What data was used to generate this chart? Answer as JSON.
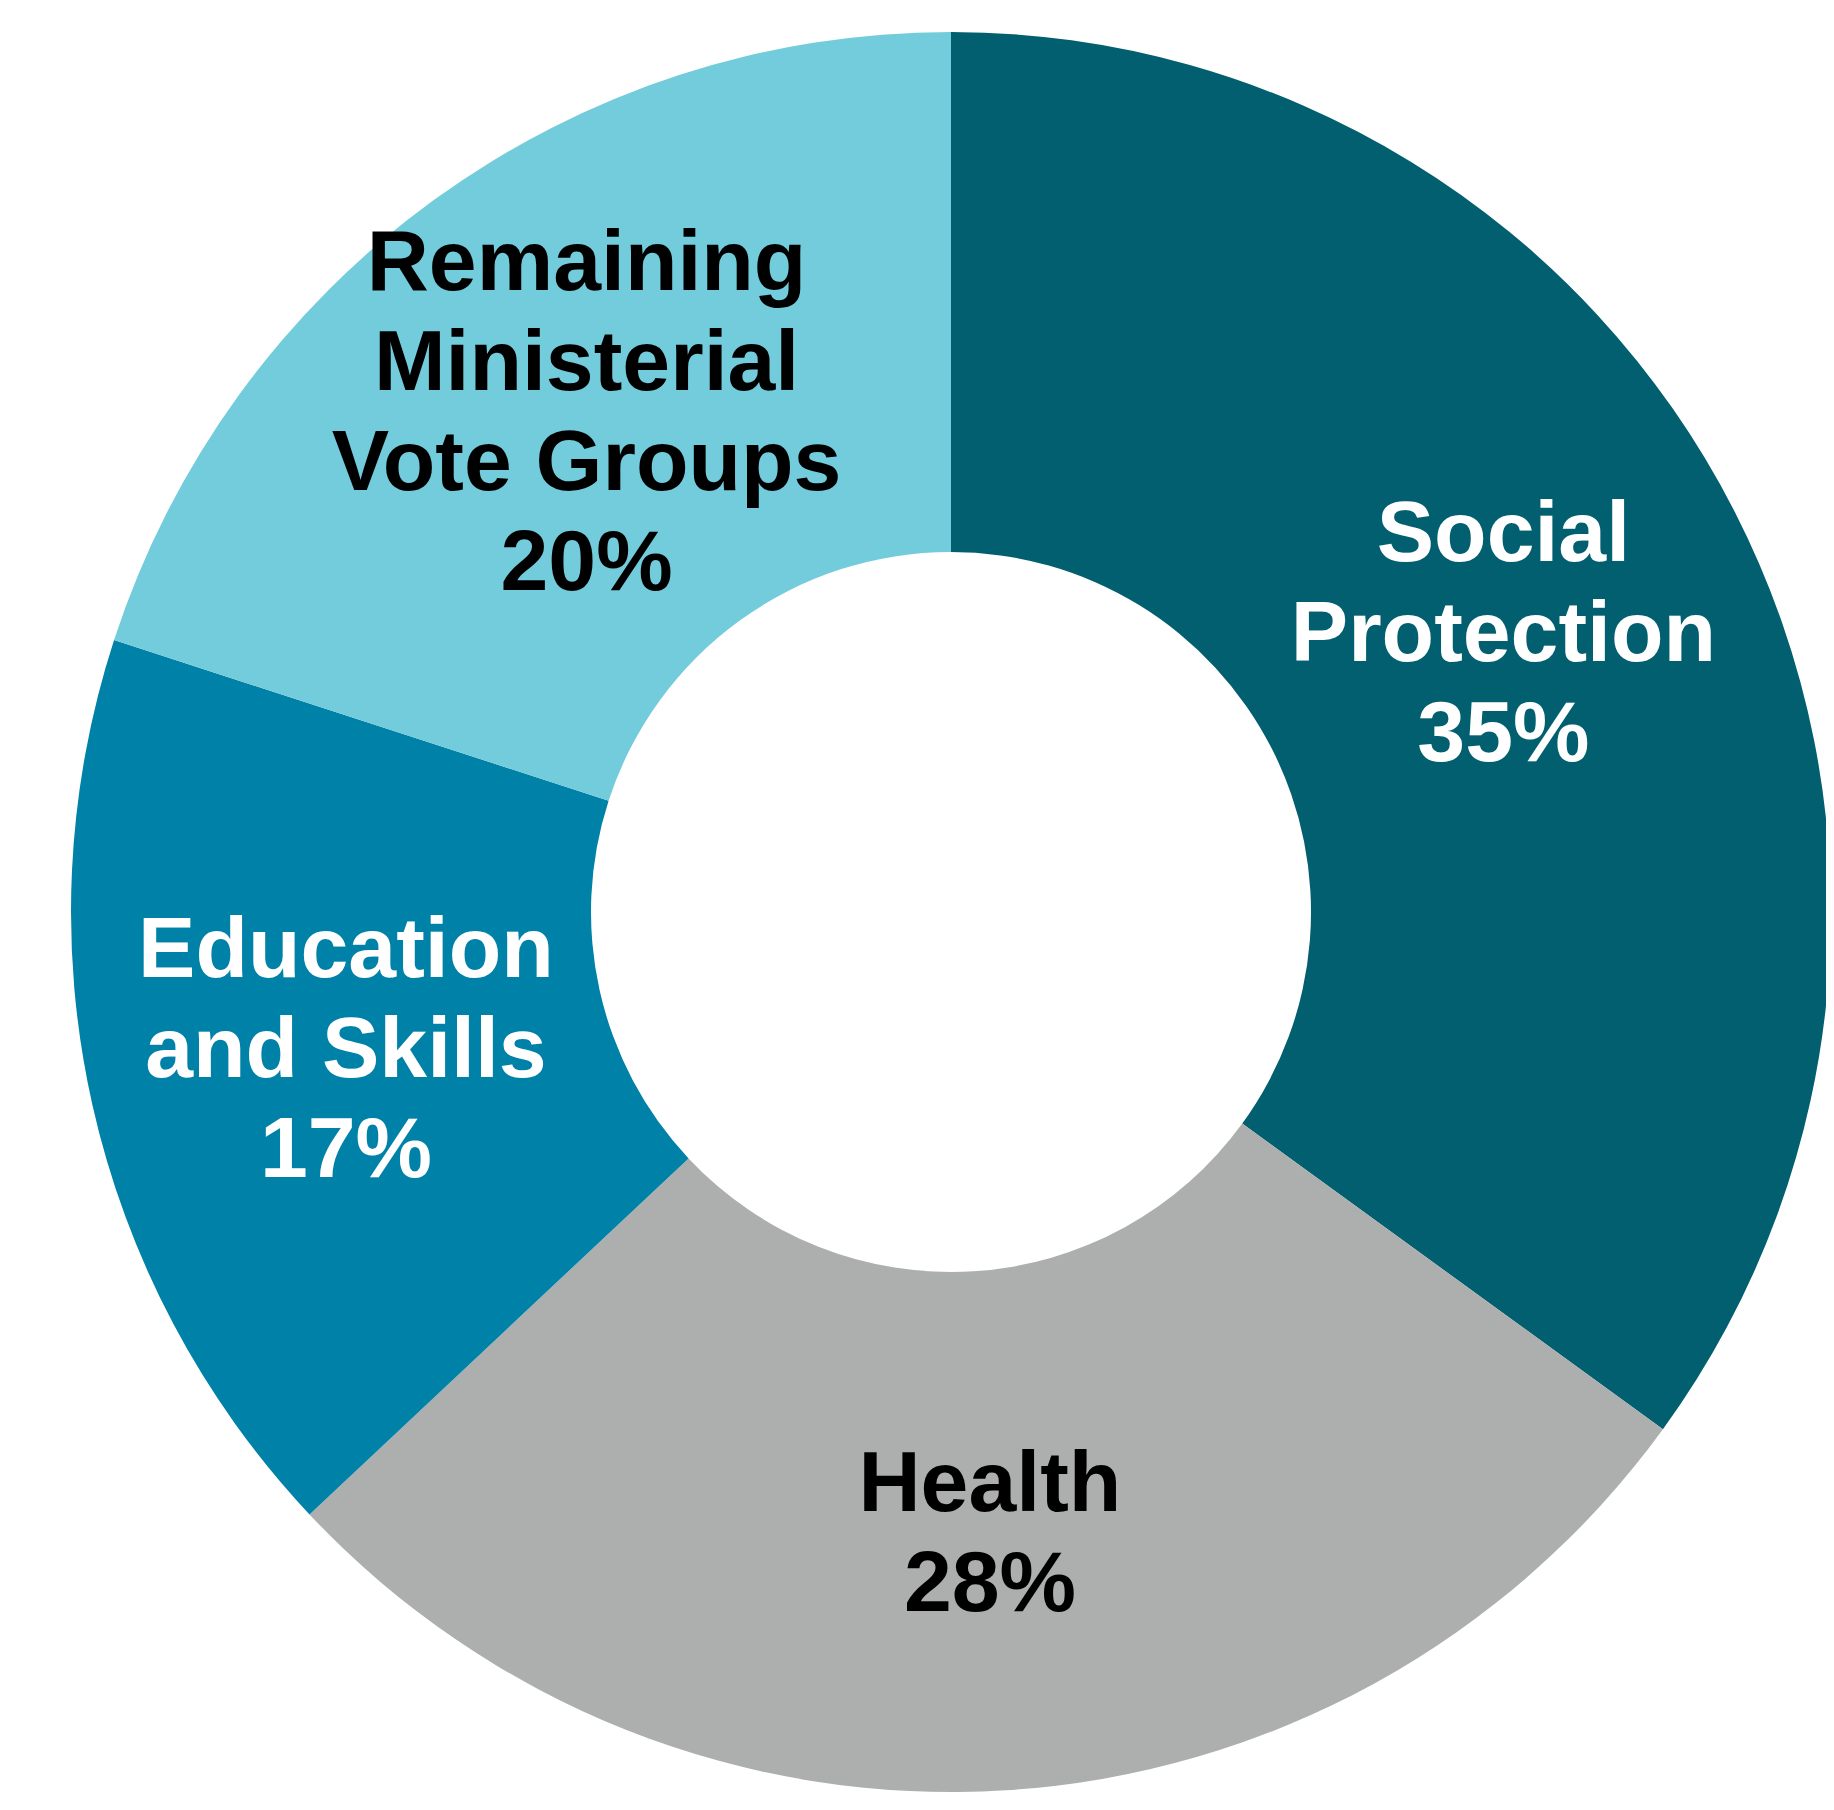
{
  "chart_data": {
    "type": "donut",
    "categories": [
      "Social Protection",
      "Health",
      "Education and Skills",
      "Remaining Ministerial Vote Groups"
    ],
    "values": [
      35,
      28,
      17,
      20
    ],
    "colors": [
      "#025f6f",
      "#adafae",
      "#0081a7",
      "#72ccdb"
    ],
    "value_labels": [
      "35%",
      "28%",
      "17%",
      "20%"
    ]
  }
}
